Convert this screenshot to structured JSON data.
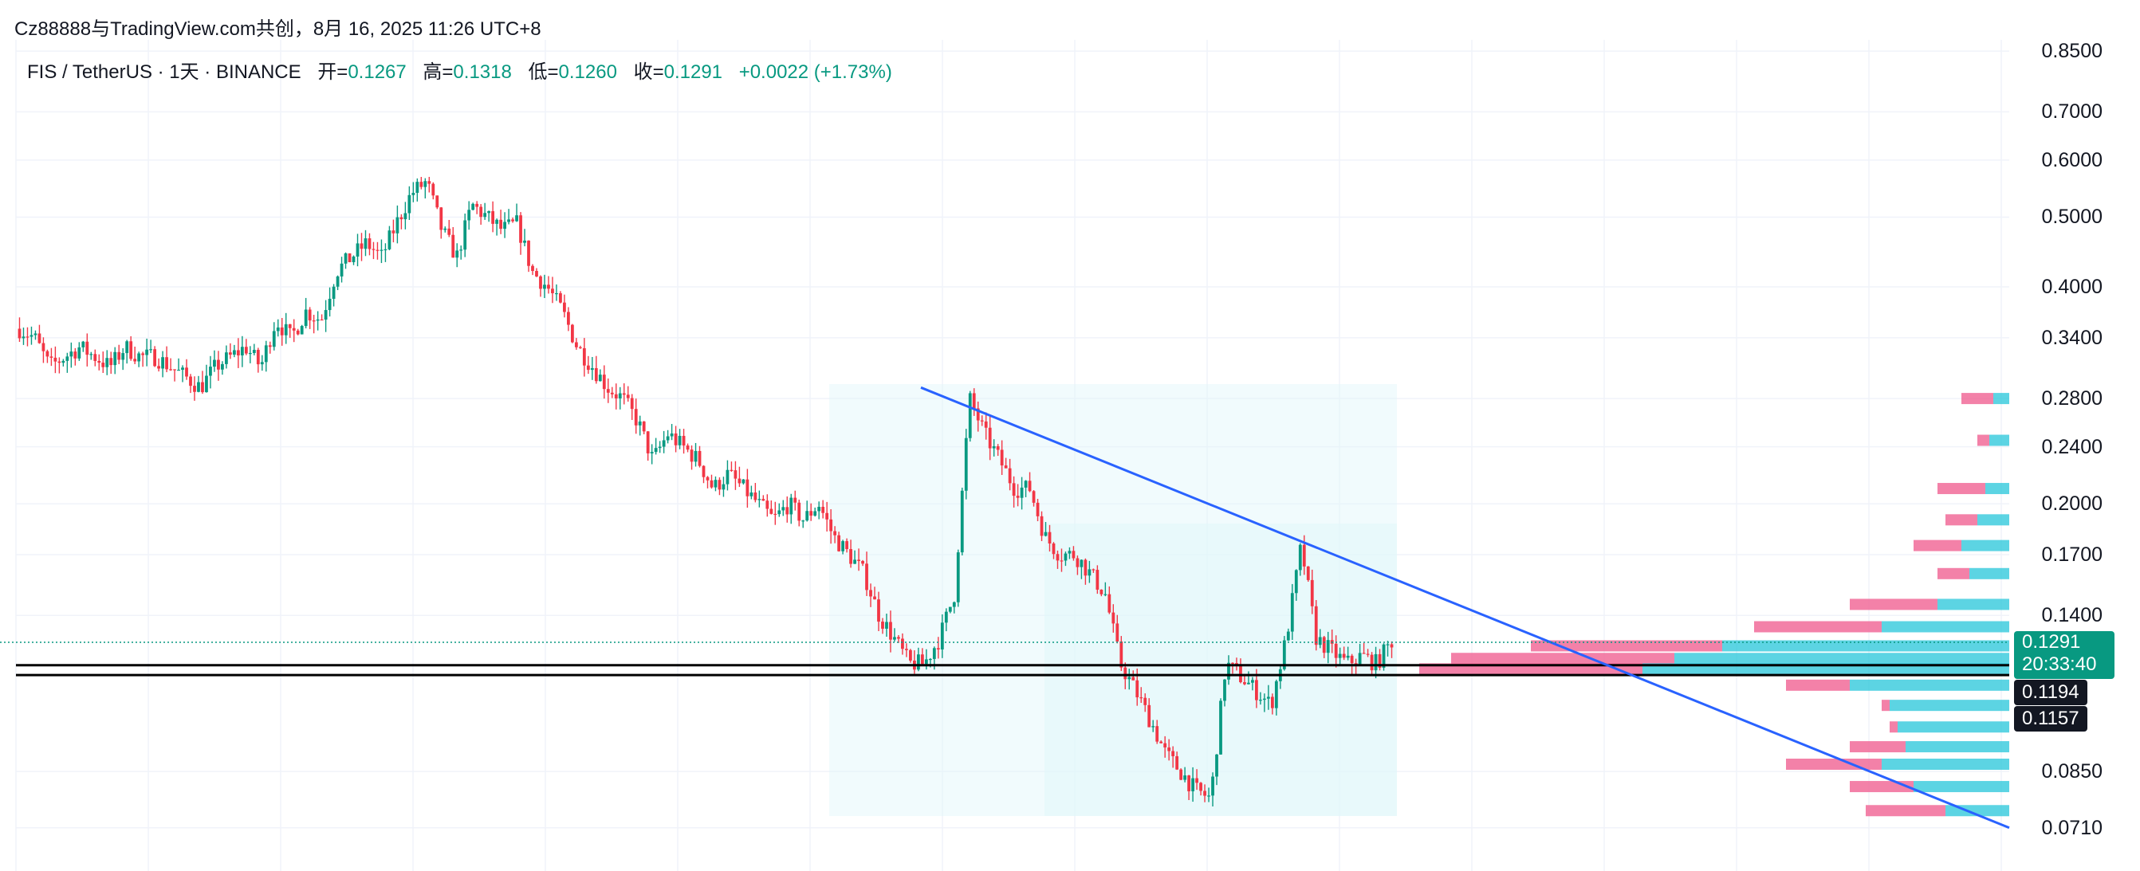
{
  "header": {
    "watermark": "Cz88888与TradingView.com共创，8月 16, 2025 11:26 UTC+8"
  },
  "legend": {
    "symbol": "FIS / TetherUS · 1天 · BINANCE",
    "open_label": "开=",
    "open": "0.1267",
    "high_label": "高=",
    "high": "0.1318",
    "low_label": "低=",
    "low": "0.1260",
    "close_label": "收=",
    "close": "0.1291",
    "change": "+0.0022 (+1.73%)"
  },
  "price_tags": {
    "last_price": "0.1291",
    "countdown": "20:33:40",
    "level_1": "0.1194",
    "level_2": "0.1157"
  },
  "colors": {
    "up": "#089981",
    "down": "#f23645",
    "trendline": "#2962ff",
    "volume_profile_up": "#26c6da",
    "volume_profile_down": "#f06292",
    "zone": "#e0f7fa"
  },
  "chart_data": {
    "type": "candlestick",
    "symbol": "FIS / TetherUS",
    "interval": "1天",
    "exchange": "BINANCE",
    "y_scale": "log",
    "ylim": [
      0.069,
      0.87
    ],
    "y_ticks": [
      "0.8500",
      "0.7000",
      "0.6000",
      "0.5000",
      "0.4000",
      "0.3400",
      "0.2800",
      "0.2400",
      "0.2000",
      "0.1700",
      "0.1400",
      "0.1291",
      "0.1194",
      "0.1157",
      "0.0850",
      "0.0710"
    ],
    "price_path": [
      [
        0.35,
        0.34
      ],
      [
        0.31,
        0.32
      ],
      [
        0.33,
        0.32
      ],
      [
        0.31,
        0.33
      ],
      [
        0.32,
        0.32
      ],
      [
        0.31,
        0.3
      ],
      [
        0.29,
        0.31
      ],
      [
        0.32,
        0.33
      ],
      [
        0.31,
        0.36
      ],
      [
        0.34,
        0.37
      ],
      [
        0.36,
        0.42
      ],
      [
        0.44,
        0.46
      ],
      [
        0.44,
        0.49
      ],
      [
        0.54,
        0.56
      ],
      [
        0.48,
        0.44
      ],
      [
        0.52,
        0.5
      ],
      [
        0.48,
        0.49
      ],
      [
        0.42,
        0.4
      ],
      [
        0.37,
        0.33
      ],
      [
        0.31,
        0.29
      ],
      [
        0.28,
        0.26
      ],
      [
        0.23,
        0.25
      ],
      [
        0.24,
        0.23
      ],
      [
        0.21,
        0.22
      ],
      [
        0.21,
        0.2
      ],
      [
        0.19,
        0.2
      ],
      [
        0.19,
        0.2
      ],
      [
        0.18,
        0.17
      ],
      [
        0.16,
        0.14
      ],
      [
        0.13,
        0.12
      ],
      [
        0.12,
        0.13
      ],
      [
        0.15,
        0.28
      ],
      [
        0.25,
        0.23
      ],
      [
        0.21,
        0.21
      ],
      [
        0.18,
        0.17
      ],
      [
        0.17,
        0.16
      ],
      [
        0.15,
        0.12
      ],
      [
        0.11,
        0.1
      ],
      [
        0.09,
        0.085
      ],
      [
        0.08,
        0.078
      ],
      [
        0.12,
        0.115
      ],
      [
        0.11,
        0.105
      ],
      [
        0.13,
        0.175
      ],
      [
        0.13,
        0.125
      ],
      [
        0.12,
        0.123
      ],
      [
        0.12,
        0.129
      ]
    ],
    "horizontal_levels": [
      0.1194,
      0.1157
    ],
    "last_price": 0.1291,
    "trendline": {
      "from": [
        0.29,
        "start"
      ],
      "to": [
        0.071,
        "end"
      ]
    },
    "volume_profile": true
  }
}
